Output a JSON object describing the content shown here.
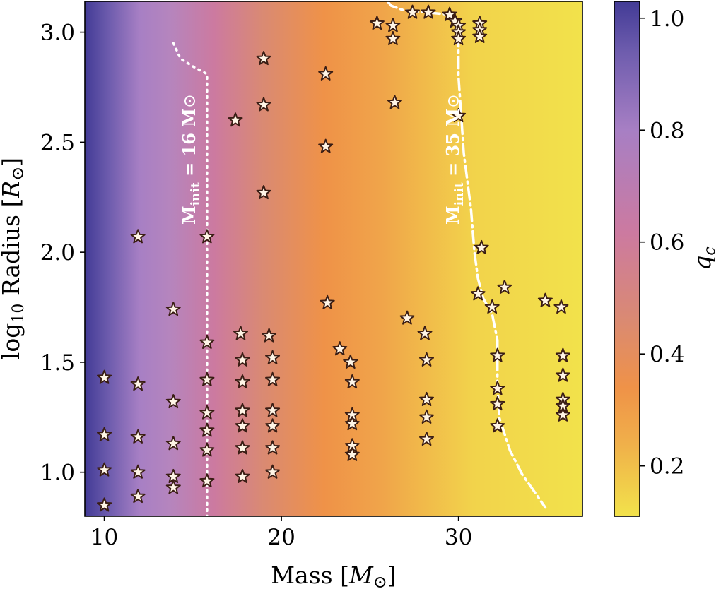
{
  "chart_data": {
    "type": "scatter",
    "xlabel": "Mass [M⊙]",
    "ylabel": "log10 Radius [R⊙]",
    "colorbar_label": "qc",
    "xlim": [
      8.9,
      37.0
    ],
    "ylim": [
      0.8,
      3.14
    ],
    "colorbar_range": [
      0.11,
      1.03
    ],
    "x_ticks": [
      10,
      20,
      30
    ],
    "y_ticks": [
      1.0,
      1.5,
      2.0,
      2.5,
      3.0
    ],
    "colorbar_ticks": [
      0.2,
      0.4,
      0.6,
      0.8,
      1.0
    ],
    "x_tick_labels": [
      "10",
      "20",
      "30"
    ],
    "y_tick_labels": [
      "1.0",
      "1.5",
      "2.0",
      "2.5",
      "3.0"
    ],
    "colorbar_tick_labels": [
      "0.2",
      "0.4",
      "0.6",
      "0.8",
      "1.0"
    ],
    "colormap": [
      "#f2e24b",
      "#f0b04a",
      "#ef9248",
      "#da8a72",
      "#cc7aa0",
      "#a77fc4",
      "#6f5dae",
      "#423b96"
    ],
    "marker_fill": "#fff5e6",
    "marker_edge": "#3a1d14",
    "curve_color": "#ffffff",
    "points": [
      {
        "x": 10,
        "y": 1.43
      },
      {
        "x": 10,
        "y": 1.17
      },
      {
        "x": 10,
        "y": 1.01
      },
      {
        "x": 10,
        "y": 0.85
      },
      {
        "x": 11.9,
        "y": 2.07
      },
      {
        "x": 11.9,
        "y": 1.4
      },
      {
        "x": 11.9,
        "y": 1.16
      },
      {
        "x": 11.9,
        "y": 1.0
      },
      {
        "x": 11.9,
        "y": 0.89
      },
      {
        "x": 13.9,
        "y": 1.74
      },
      {
        "x": 13.9,
        "y": 1.32
      },
      {
        "x": 13.9,
        "y": 1.13
      },
      {
        "x": 13.9,
        "y": 0.98
      },
      {
        "x": 13.9,
        "y": 0.93
      },
      {
        "x": 15.8,
        "y": 2.07
      },
      {
        "x": 15.8,
        "y": 1.59
      },
      {
        "x": 15.8,
        "y": 1.42
      },
      {
        "x": 15.8,
        "y": 1.27
      },
      {
        "x": 15.8,
        "y": 1.19
      },
      {
        "x": 15.8,
        "y": 1.1
      },
      {
        "x": 15.8,
        "y": 0.96
      },
      {
        "x": 17.4,
        "y": 2.6
      },
      {
        "x": 17.7,
        "y": 1.63
      },
      {
        "x": 17.8,
        "y": 1.51
      },
      {
        "x": 17.8,
        "y": 1.41
      },
      {
        "x": 17.8,
        "y": 1.28
      },
      {
        "x": 17.8,
        "y": 1.21
      },
      {
        "x": 17.8,
        "y": 1.11
      },
      {
        "x": 17.8,
        "y": 0.98
      },
      {
        "x": 19.0,
        "y": 2.88
      },
      {
        "x": 19.0,
        "y": 2.67
      },
      {
        "x": 19.0,
        "y": 2.27
      },
      {
        "x": 19.3,
        "y": 1.62
      },
      {
        "x": 19.5,
        "y": 1.52
      },
      {
        "x": 19.5,
        "y": 1.42
      },
      {
        "x": 19.5,
        "y": 1.28
      },
      {
        "x": 19.5,
        "y": 1.21
      },
      {
        "x": 19.5,
        "y": 1.11
      },
      {
        "x": 19.5,
        "y": 1.0
      },
      {
        "x": 22.5,
        "y": 2.81
      },
      {
        "x": 22.5,
        "y": 2.48
      },
      {
        "x": 22.6,
        "y": 1.77
      },
      {
        "x": 23.3,
        "y": 1.56
      },
      {
        "x": 23.9,
        "y": 1.5
      },
      {
        "x": 24.0,
        "y": 1.41
      },
      {
        "x": 24.0,
        "y": 1.26
      },
      {
        "x": 24.0,
        "y": 1.22
      },
      {
        "x": 24.0,
        "y": 1.12
      },
      {
        "x": 24.0,
        "y": 1.08
      },
      {
        "x": 25.4,
        "y": 3.04
      },
      {
        "x": 26.3,
        "y": 3.03
      },
      {
        "x": 26.3,
        "y": 2.97
      },
      {
        "x": 26.4,
        "y": 2.68
      },
      {
        "x": 27.1,
        "y": 1.7
      },
      {
        "x": 27.4,
        "y": 3.09
      },
      {
        "x": 28.3,
        "y": 3.09
      },
      {
        "x": 28.1,
        "y": 1.63
      },
      {
        "x": 28.2,
        "y": 1.51
      },
      {
        "x": 28.2,
        "y": 1.33
      },
      {
        "x": 28.2,
        "y": 1.25
      },
      {
        "x": 28.2,
        "y": 1.15
      },
      {
        "x": 29.5,
        "y": 3.08
      },
      {
        "x": 29.8,
        "y": 3.05
      },
      {
        "x": 30.0,
        "y": 3.03
      },
      {
        "x": 30.0,
        "y": 3.0
      },
      {
        "x": 30.0,
        "y": 2.97
      },
      {
        "x": 30.0,
        "y": 2.62
      },
      {
        "x": 31.2,
        "y": 3.04
      },
      {
        "x": 31.2,
        "y": 3.01
      },
      {
        "x": 31.2,
        "y": 2.98
      },
      {
        "x": 31.3,
        "y": 2.02
      },
      {
        "x": 31.1,
        "y": 1.81
      },
      {
        "x": 32.6,
        "y": 1.84
      },
      {
        "x": 31.9,
        "y": 1.75
      },
      {
        "x": 32.2,
        "y": 1.53
      },
      {
        "x": 32.2,
        "y": 1.38
      },
      {
        "x": 32.2,
        "y": 1.31
      },
      {
        "x": 32.2,
        "y": 1.21
      },
      {
        "x": 34.9,
        "y": 1.78
      },
      {
        "x": 35.8,
        "y": 1.75
      },
      {
        "x": 35.9,
        "y": 1.53
      },
      {
        "x": 35.9,
        "y": 1.44
      },
      {
        "x": 35.9,
        "y": 1.33
      },
      {
        "x": 35.9,
        "y": 1.3
      },
      {
        "x": 35.9,
        "y": 1.26
      }
    ],
    "tracks": [
      {
        "label": "M_init = 16 M⊙",
        "style": "dotted",
        "points": [
          [
            13.9,
            2.95
          ],
          [
            14.3,
            2.88
          ],
          [
            15.1,
            2.84
          ],
          [
            15.8,
            2.81
          ],
          [
            15.8,
            2.5
          ],
          [
            15.8,
            2.0
          ],
          [
            15.8,
            1.5
          ],
          [
            15.8,
            1.0
          ],
          [
            15.8,
            0.8
          ]
        ]
      },
      {
        "label": "M_init = 35 M⊙",
        "style": "dashdot",
        "points": [
          [
            26.0,
            3.14
          ],
          [
            26.2,
            3.12
          ],
          [
            26.9,
            3.1
          ],
          [
            29.5,
            3.08
          ],
          [
            30.0,
            3.0
          ],
          [
            30.0,
            2.8
          ],
          [
            30.3,
            2.45
          ],
          [
            30.7,
            2.2
          ],
          [
            30.9,
            2.0
          ],
          [
            31.1,
            1.88
          ],
          [
            31.4,
            1.79
          ],
          [
            31.9,
            1.72
          ],
          [
            32.2,
            1.6
          ],
          [
            32.2,
            1.4
          ],
          [
            32.3,
            1.25
          ],
          [
            32.9,
            1.1
          ],
          [
            33.6,
            0.99
          ],
          [
            34.3,
            0.91
          ],
          [
            34.9,
            0.84
          ]
        ]
      }
    ]
  }
}
